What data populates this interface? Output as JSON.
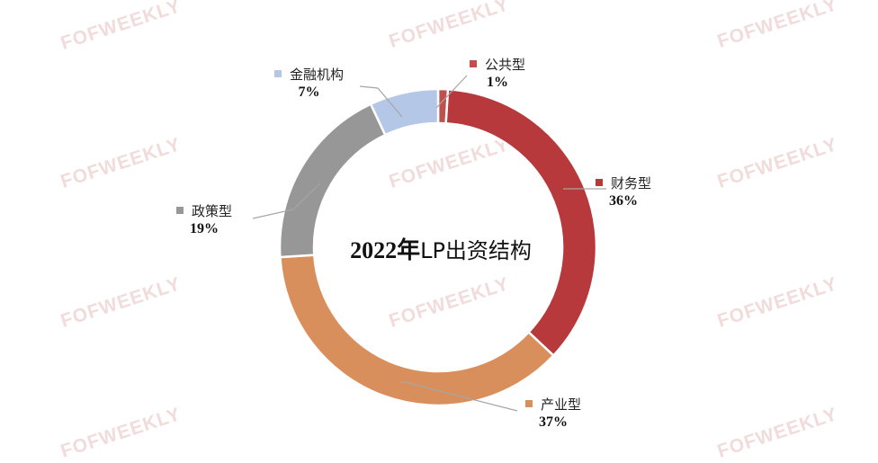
{
  "watermark": "FOFWEEKLY",
  "chart_data": {
    "type": "pie",
    "style": "donut",
    "title_year": "2022年",
    "title_rest": "LP出资结构",
    "slices": [
      {
        "key": "public",
        "name": "公共型",
        "value": 1,
        "label": "1%",
        "color": "#c0504d"
      },
      {
        "key": "financial",
        "name": "财务型",
        "value": 36,
        "label": "36%",
        "color": "#b8393b"
      },
      {
        "key": "industrial",
        "name": "产业型",
        "value": 37,
        "label": "37%",
        "color": "#d98f5c"
      },
      {
        "key": "policy",
        "name": "政策型",
        "value": 19,
        "label": "19%",
        "color": "#979797"
      },
      {
        "key": "institution",
        "name": "金融机构",
        "value": 7,
        "label": "7%",
        "color": "#b4c7e7"
      }
    ],
    "legend": "outside-labels"
  }
}
